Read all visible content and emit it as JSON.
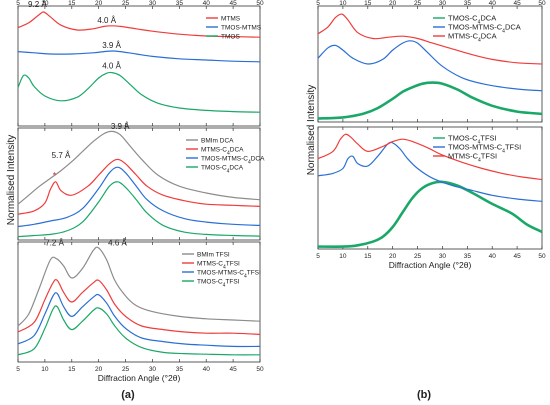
{
  "colors": {
    "red": "#f03c3c",
    "blue": "#2a6fd6",
    "green": "#1aa868",
    "gray": "#8c8c8c",
    "axis": "#333333",
    "star": "#e23030"
  },
  "chart_data": [
    {
      "type": "line",
      "panel": "a-top",
      "xlim": [
        5,
        50
      ],
      "ylim": [
        0,
        1
      ],
      "grid": false,
      "legend": "top-right",
      "xticks": [
        "5",
        "10",
        "15",
        "20",
        "25",
        "30",
        "35",
        "40",
        "45",
        "50"
      ],
      "series": [
        {
          "name": "MTMS",
          "color": "red",
          "x": [
            5,
            7,
            9,
            9.8,
            11,
            13,
            16,
            19,
            21,
            22.5,
            24,
            27,
            30,
            35,
            40,
            45,
            50
          ],
          "y": [
            0.82,
            0.86,
            0.93,
            0.95,
            0.91,
            0.84,
            0.8,
            0.81,
            0.83,
            0.835,
            0.83,
            0.81,
            0.79,
            0.765,
            0.75,
            0.745,
            0.74
          ]
        },
        {
          "name": "TMOS-MTMS",
          "color": "blue",
          "x": [
            5,
            8,
            11,
            15,
            19,
            21,
            22.5,
            24,
            27,
            30,
            35,
            40,
            45,
            50
          ],
          "y": [
            0.62,
            0.61,
            0.6,
            0.6,
            0.61,
            0.62,
            0.625,
            0.62,
            0.6,
            0.58,
            0.56,
            0.55,
            0.54,
            0.535
          ]
        },
        {
          "name": "TMOS",
          "color": "green",
          "x": [
            5,
            6,
            7,
            8,
            10,
            13,
            16,
            18,
            20,
            21.5,
            22.5,
            24,
            26,
            28,
            31,
            35,
            40,
            45,
            50
          ],
          "y": [
            0.32,
            0.42,
            0.4,
            0.33,
            0.25,
            0.21,
            0.24,
            0.31,
            0.4,
            0.44,
            0.445,
            0.42,
            0.34,
            0.26,
            0.19,
            0.15,
            0.13,
            0.12,
            0.115
          ]
        }
      ],
      "annotations": [
        {
          "text": "9.2 Å",
          "x": 8.6,
          "y": 0.99
        },
        {
          "text": "4.0 Å",
          "x": 21.5,
          "y": 0.86
        },
        {
          "text": "3.9 Å",
          "x": 22.4,
          "y": 0.65
        },
        {
          "text": "4.0 Å",
          "x": 22.4,
          "y": 0.48
        }
      ]
    },
    {
      "type": "line",
      "panel": "a-mid",
      "xlim": [
        5,
        50
      ],
      "ylim": [
        0,
        1
      ],
      "grid": false,
      "legend": "top-right",
      "xticks": [
        "5",
        "10",
        "15",
        "20",
        "25",
        "30",
        "35",
        "40",
        "45",
        "50"
      ],
      "series": [
        {
          "name": "BMIm DCA",
          "color": "gray",
          "x": [
            5,
            7,
            9,
            11,
            13,
            15,
            17,
            19,
            21,
            22.5,
            24,
            26,
            28,
            31,
            35,
            40,
            45,
            50
          ],
          "y": [
            0.32,
            0.4,
            0.48,
            0.55,
            0.62,
            0.7,
            0.79,
            0.88,
            0.95,
            0.97,
            0.94,
            0.83,
            0.72,
            0.58,
            0.48,
            0.42,
            0.38,
            0.36
          ]
        },
        {
          "name": "MTMS-C4DCA",
          "color": "red",
          "x": [
            5,
            8,
            10,
            11,
            12,
            13,
            15,
            18,
            20,
            22,
            23.5,
            25,
            27,
            29,
            32,
            36,
            40,
            45,
            50
          ],
          "y": [
            0.23,
            0.26,
            0.33,
            0.45,
            0.52,
            0.44,
            0.4,
            0.48,
            0.58,
            0.68,
            0.72,
            0.68,
            0.58,
            0.48,
            0.4,
            0.35,
            0.32,
            0.31,
            0.3
          ]
        },
        {
          "name": "TMOS-MTMS-C4DCA",
          "color": "blue",
          "x": [
            5,
            8,
            11,
            14,
            17,
            20,
            22,
            23.5,
            25,
            27,
            29,
            32,
            36,
            40,
            45,
            50
          ],
          "y": [
            0.12,
            0.14,
            0.17,
            0.2,
            0.28,
            0.46,
            0.6,
            0.65,
            0.6,
            0.48,
            0.36,
            0.26,
            0.19,
            0.16,
            0.14,
            0.13
          ]
        },
        {
          "name": "TMOS-C4DCA",
          "color": "green",
          "x": [
            5,
            8,
            11,
            14,
            17,
            20,
            22,
            23.5,
            25,
            27,
            29,
            32,
            36,
            40,
            45,
            50
          ],
          "y": [
            0.03,
            0.04,
            0.05,
            0.08,
            0.16,
            0.34,
            0.48,
            0.52,
            0.47,
            0.36,
            0.24,
            0.13,
            0.07,
            0.05,
            0.04,
            0.035
          ]
        }
      ],
      "annotations": [
        {
          "text": "5.7 Å",
          "x": 13,
          "y": 0.73
        },
        {
          "text": "3.9 Å",
          "x": 24,
          "y": 0.99
        },
        {
          "text": "*",
          "x": 11.8,
          "y": 0.55
        }
      ]
    },
    {
      "type": "line",
      "panel": "a-bot",
      "xlim": [
        5,
        50
      ],
      "ylim": [
        0,
        1
      ],
      "grid": false,
      "legend": "top-right",
      "xticks": [
        "5",
        "10",
        "15",
        "20",
        "25",
        "30",
        "35",
        "40",
        "45",
        "50"
      ],
      "xlabel": "Diffraction Angle (°2θ)",
      "series": [
        {
          "name": "BMIm TFSI",
          "color": "gray",
          "x": [
            5,
            7,
            9,
            11,
            12.2,
            13.5,
            15,
            17,
            19,
            20,
            21.5,
            23,
            25,
            27,
            30,
            35,
            40,
            45,
            50
          ],
          "y": [
            0.3,
            0.4,
            0.62,
            0.85,
            0.86,
            0.8,
            0.7,
            0.78,
            0.93,
            0.95,
            0.85,
            0.68,
            0.55,
            0.47,
            0.42,
            0.38,
            0.36,
            0.35,
            0.34
          ]
        },
        {
          "name": "MTMS-C4TFSI",
          "color": "red",
          "x": [
            5,
            8,
            10,
            11.5,
            12.3,
            13.5,
            15,
            17,
            19,
            20,
            21.5,
            23,
            25,
            28,
            32,
            36,
            40,
            45,
            50
          ],
          "y": [
            0.25,
            0.33,
            0.52,
            0.66,
            0.68,
            0.58,
            0.5,
            0.58,
            0.66,
            0.68,
            0.6,
            0.48,
            0.38,
            0.3,
            0.27,
            0.25,
            0.24,
            0.24,
            0.23
          ]
        },
        {
          "name": "TMOS-MTMS-C4TFSI",
          "color": "blue",
          "x": [
            5,
            8,
            10,
            11.5,
            12.3,
            13.5,
            15,
            17,
            19,
            20,
            21.5,
            23,
            25,
            28,
            32,
            36,
            40,
            45,
            50
          ],
          "y": [
            0.15,
            0.22,
            0.4,
            0.55,
            0.57,
            0.46,
            0.38,
            0.46,
            0.54,
            0.56,
            0.49,
            0.38,
            0.28,
            0.2,
            0.17,
            0.15,
            0.14,
            0.13,
            0.13
          ]
        },
        {
          "name": "TMOS-C4TFSI",
          "color": "green",
          "x": [
            5,
            8,
            10,
            11.5,
            12.3,
            13.5,
            15,
            17,
            19,
            20,
            21.5,
            23,
            25,
            28,
            32,
            36,
            40,
            45,
            50
          ],
          "y": [
            0.06,
            0.11,
            0.28,
            0.44,
            0.46,
            0.35,
            0.27,
            0.34,
            0.43,
            0.45,
            0.4,
            0.3,
            0.2,
            0.12,
            0.08,
            0.07,
            0.065,
            0.06,
            0.06
          ]
        }
      ],
      "annotations": [
        {
          "text": "7.2 Å",
          "x": 11.8,
          "y": 0.97
        },
        {
          "text": "4.6 Å",
          "x": 23.5,
          "y": 0.97
        }
      ]
    },
    {
      "type": "line",
      "panel": "b-top",
      "xlim": [
        5,
        50
      ],
      "ylim": [
        0,
        1
      ],
      "grid": false,
      "legend": "top-right",
      "xticks": [
        "5",
        "10",
        "15",
        "20",
        "25",
        "30",
        "35",
        "40",
        "45",
        "50"
      ],
      "series": [
        {
          "name": "TMOS-C4DCA",
          "color": "green",
          "x": [
            5,
            10,
            14,
            17,
            20,
            22,
            24,
            26,
            28,
            30,
            33,
            36,
            40,
            45,
            50
          ],
          "y": [
            0.03,
            0.04,
            0.07,
            0.12,
            0.2,
            0.26,
            0.3,
            0.33,
            0.34,
            0.33,
            0.28,
            0.21,
            0.14,
            0.09,
            0.07
          ]
        },
        {
          "name": "TMOS-MTMS-C4DCA",
          "color": "blue",
          "x": [
            5,
            7,
            8.5,
            10,
            12,
            15,
            18,
            20,
            22,
            23.5,
            25,
            27,
            30,
            34,
            38,
            42,
            46,
            50
          ],
          "y": [
            0.55,
            0.64,
            0.66,
            0.62,
            0.55,
            0.5,
            0.54,
            0.62,
            0.68,
            0.7,
            0.68,
            0.6,
            0.48,
            0.38,
            0.33,
            0.3,
            0.28,
            0.27
          ]
        },
        {
          "name": "MTMS-C4DCA",
          "color": "red",
          "x": [
            5,
            7,
            8.5,
            9.8,
            11,
            13,
            16,
            19,
            22,
            25,
            28,
            32,
            36,
            40,
            45,
            50
          ],
          "y": [
            0.76,
            0.82,
            0.9,
            0.93,
            0.88,
            0.77,
            0.72,
            0.73,
            0.74,
            0.72,
            0.68,
            0.63,
            0.58,
            0.54,
            0.51,
            0.5
          ]
        }
      ]
    },
    {
      "type": "line",
      "panel": "b-bot",
      "xlim": [
        5,
        50
      ],
      "ylim": [
        0,
        1
      ],
      "grid": false,
      "legend": "top-right",
      "xticks": [
        "5",
        "10",
        "15",
        "20",
        "25",
        "30",
        "35",
        "40",
        "45",
        "50"
      ],
      "xlabel": "Diffraction Angle (°2θ)",
      "series": [
        {
          "name": "TMOS-C4TFSI",
          "color": "green",
          "x": [
            5,
            10,
            13,
            16,
            18,
            20,
            22,
            24,
            26,
            28,
            30,
            33,
            36,
            40,
            44,
            47,
            50
          ],
          "y": [
            0.02,
            0.02,
            0.03,
            0.06,
            0.1,
            0.18,
            0.3,
            0.42,
            0.5,
            0.54,
            0.55,
            0.52,
            0.46,
            0.37,
            0.29,
            0.2,
            0.14
          ]
        },
        {
          "name": "TMOS-MTMS-C4TFSI",
          "color": "blue",
          "x": [
            5,
            8,
            10,
            11,
            12,
            13,
            15,
            17,
            19,
            20,
            21.5,
            23,
            25,
            28,
            32,
            36,
            40,
            45,
            50
          ],
          "y": [
            0.6,
            0.62,
            0.66,
            0.74,
            0.76,
            0.7,
            0.68,
            0.76,
            0.86,
            0.87,
            0.82,
            0.74,
            0.66,
            0.58,
            0.52,
            0.48,
            0.44,
            0.41,
            0.39
          ]
        },
        {
          "name": "MTMS-C4TFSI",
          "color": "red",
          "x": [
            5,
            8,
            9.5,
            10.5,
            11.5,
            13,
            15,
            18,
            20,
            22,
            24,
            27,
            30,
            34,
            38,
            42,
            46,
            50
          ],
          "y": [
            0.74,
            0.8,
            0.9,
            0.94,
            0.92,
            0.86,
            0.8,
            0.84,
            0.88,
            0.9,
            0.88,
            0.83,
            0.77,
            0.71,
            0.66,
            0.62,
            0.59,
            0.57
          ]
        }
      ]
    }
  ],
  "labels": {
    "ylabel_a": "Normalised Intensity",
    "ylabel_b": "Normalised Intensity",
    "panel_a": "(a)",
    "panel_b": "(b)"
  }
}
